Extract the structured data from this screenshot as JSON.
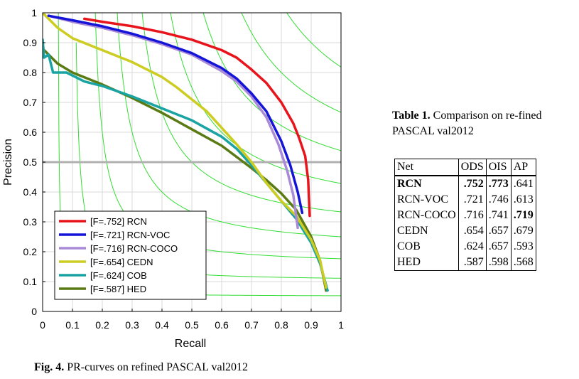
{
  "chart_data": {
    "type": "line",
    "title": "",
    "xlabel": "Recall",
    "ylabel": "Precision",
    "xlim": [
      0,
      1
    ],
    "ylim": [
      0,
      1
    ],
    "xticks": [
      "0",
      "0.1",
      "0.2",
      "0.3",
      "0.4",
      "0.5",
      "0.6",
      "0.7",
      "0.8",
      "0.9",
      "1"
    ],
    "yticks": [
      "0",
      "0.1",
      "0.2",
      "0.3",
      "0.4",
      "0.5",
      "0.6",
      "0.7",
      "0.8",
      "0.9",
      "1"
    ],
    "grid": true,
    "reference_line_y": 0.5,
    "iso_f_contours": [
      0.1,
      0.2,
      0.3,
      0.4,
      0.5,
      0.6,
      0.7,
      0.8,
      0.9
    ],
    "legend_position": "bottom-left",
    "series": [
      {
        "name": "[F=.752] RCN",
        "color": "#e8141c",
        "points": [
          [
            0.14,
            0.98
          ],
          [
            0.2,
            0.97
          ],
          [
            0.3,
            0.955
          ],
          [
            0.4,
            0.935
          ],
          [
            0.5,
            0.91
          ],
          [
            0.6,
            0.875
          ],
          [
            0.65,
            0.85
          ],
          [
            0.7,
            0.81
          ],
          [
            0.75,
            0.765
          ],
          [
            0.8,
            0.7
          ],
          [
            0.84,
            0.63
          ],
          [
            0.86,
            0.58
          ],
          [
            0.88,
            0.52
          ],
          [
            0.89,
            0.44
          ],
          [
            0.895,
            0.32
          ]
        ]
      },
      {
        "name": "[F=.721] RCN-VOC",
        "color": "#1414d8",
        "points": [
          [
            0.02,
            0.99
          ],
          [
            0.1,
            0.975
          ],
          [
            0.2,
            0.955
          ],
          [
            0.3,
            0.93
          ],
          [
            0.4,
            0.9
          ],
          [
            0.5,
            0.865
          ],
          [
            0.55,
            0.84
          ],
          [
            0.6,
            0.815
          ],
          [
            0.65,
            0.78
          ],
          [
            0.7,
            0.73
          ],
          [
            0.75,
            0.67
          ],
          [
            0.8,
            0.57
          ],
          [
            0.83,
            0.49
          ],
          [
            0.855,
            0.4
          ],
          [
            0.87,
            0.33
          ]
        ]
      },
      {
        "name": "[F=.716] RCN-COCO",
        "color": "#a98ad8",
        "points": [
          [
            0.02,
            0.99
          ],
          [
            0.1,
            0.97
          ],
          [
            0.2,
            0.95
          ],
          [
            0.3,
            0.925
          ],
          [
            0.4,
            0.895
          ],
          [
            0.5,
            0.86
          ],
          [
            0.6,
            0.805
          ],
          [
            0.65,
            0.77
          ],
          [
            0.7,
            0.72
          ],
          [
            0.75,
            0.65
          ],
          [
            0.79,
            0.56
          ],
          [
            0.82,
            0.47
          ],
          [
            0.84,
            0.39
          ],
          [
            0.855,
            0.28
          ]
        ]
      },
      {
        "name": "[F=.654] CEDN",
        "color": "#cccc22",
        "points": [
          [
            0.005,
            0.995
          ],
          [
            0.05,
            0.95
          ],
          [
            0.1,
            0.915
          ],
          [
            0.2,
            0.875
          ],
          [
            0.3,
            0.835
          ],
          [
            0.4,
            0.785
          ],
          [
            0.45,
            0.75
          ],
          [
            0.5,
            0.71
          ],
          [
            0.55,
            0.67
          ],
          [
            0.6,
            0.615
          ],
          [
            0.65,
            0.56
          ],
          [
            0.7,
            0.5
          ],
          [
            0.75,
            0.43
          ],
          [
            0.8,
            0.37
          ],
          [
            0.85,
            0.32
          ],
          [
            0.9,
            0.24
          ],
          [
            0.93,
            0.17
          ],
          [
            0.95,
            0.08
          ]
        ]
      },
      {
        "name": "[F=.624] COB",
        "color": "#1aa3a3",
        "points": [
          [
            0.0,
            0.91
          ],
          [
            0.005,
            0.85
          ],
          [
            0.02,
            0.86
          ],
          [
            0.035,
            0.8
          ],
          [
            0.08,
            0.8
          ],
          [
            0.14,
            0.77
          ],
          [
            0.2,
            0.755
          ],
          [
            0.3,
            0.72
          ],
          [
            0.4,
            0.68
          ],
          [
            0.5,
            0.64
          ],
          [
            0.6,
            0.585
          ],
          [
            0.65,
            0.545
          ],
          [
            0.7,
            0.49
          ],
          [
            0.75,
            0.43
          ],
          [
            0.8,
            0.37
          ],
          [
            0.85,
            0.31
          ],
          [
            0.9,
            0.23
          ],
          [
            0.93,
            0.16
          ],
          [
            0.955,
            0.07
          ]
        ]
      },
      {
        "name": "[F=.587] HED",
        "color": "#5a7a14",
        "points": [
          [
            0.0,
            0.88
          ],
          [
            0.05,
            0.83
          ],
          [
            0.1,
            0.8
          ],
          [
            0.2,
            0.76
          ],
          [
            0.3,
            0.715
          ],
          [
            0.4,
            0.665
          ],
          [
            0.5,
            0.61
          ],
          [
            0.6,
            0.555
          ],
          [
            0.7,
            0.48
          ],
          [
            0.75,
            0.44
          ],
          [
            0.8,
            0.395
          ],
          [
            0.85,
            0.34
          ],
          [
            0.9,
            0.25
          ],
          [
            0.93,
            0.17
          ],
          [
            0.95,
            0.07
          ]
        ]
      }
    ]
  },
  "figure_caption": {
    "label": "Fig. 4.",
    "text": " PR-curves on refined PASCAL val2012"
  },
  "table_caption": {
    "label": "Table 1.",
    "text": " Comparison on re-fined PASCAL val2012"
  },
  "table": {
    "headers": [
      "Net",
      "ODS",
      "OIS",
      "AP"
    ],
    "rows": [
      {
        "net": "RCN",
        "ods": ".752",
        "ois": ".773",
        "ap": ".641"
      },
      {
        "net": "RCN-VOC",
        "ods": ".721",
        "ois": ".746",
        "ap": ".613"
      },
      {
        "net": "RCN-COCO",
        "ods": ".716",
        "ois": ".741",
        "ap": ".719"
      },
      {
        "net": "CEDN",
        "ods": ".654",
        "ois": ".657",
        "ap": ".679"
      },
      {
        "net": "COB",
        "ods": ".624",
        "ois": ".657",
        "ap": ".593"
      },
      {
        "net": "HED",
        "ods": ".587",
        "ois": ".598",
        "ap": ".568"
      }
    ]
  }
}
